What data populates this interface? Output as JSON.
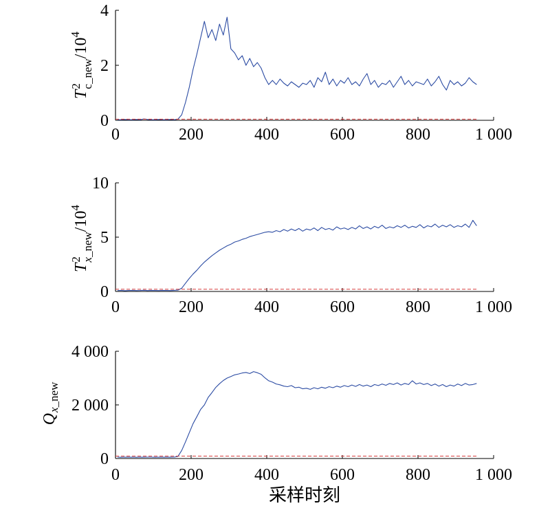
{
  "chart_data": [
    {
      "type": "line",
      "ylabel": {
        "base": "T",
        "sup": "2",
        "sub": "c_new",
        "unit": "/10",
        "unit_sup": "4"
      },
      "xlim": [
        0,
        1000
      ],
      "ylim": [
        0,
        4
      ],
      "x_ticks": [
        0,
        200,
        400,
        600,
        800,
        1000
      ],
      "x_tick_labels": [
        "0",
        "200",
        "400",
        "600",
        "800",
        "1 000"
      ],
      "y_ticks": [
        0,
        2,
        4
      ],
      "y_tick_labels": [
        "0",
        "2",
        "4"
      ],
      "grid": false,
      "x": [
        5,
        15,
        25,
        35,
        45,
        55,
        65,
        75,
        85,
        95,
        105,
        115,
        125,
        135,
        145,
        155,
        165,
        175,
        185,
        195,
        205,
        215,
        225,
        235,
        245,
        255,
        265,
        275,
        285,
        295,
        305,
        315,
        325,
        335,
        345,
        355,
        365,
        375,
        385,
        395,
        405,
        415,
        425,
        435,
        445,
        455,
        465,
        475,
        485,
        495,
        505,
        515,
        525,
        535,
        545,
        555,
        565,
        575,
        585,
        595,
        605,
        615,
        625,
        635,
        645,
        655,
        665,
        675,
        685,
        695,
        705,
        715,
        725,
        735,
        745,
        755,
        765,
        775,
        785,
        795,
        805,
        815,
        825,
        835,
        845,
        855,
        865,
        875,
        885,
        895,
        905,
        915,
        925,
        935,
        945,
        955
      ],
      "series": [
        {
          "color": "#2b4ba3",
          "dashed": false,
          "values": [
            0.02,
            0.02,
            0.03,
            0.02,
            0.02,
            0.03,
            0.02,
            0.05,
            0.03,
            0.02,
            0.02,
            0.03,
            0.02,
            0.02,
            0.03,
            0.02,
            0.04,
            0.2,
            0.65,
            1.2,
            1.85,
            2.4,
            3.0,
            3.6,
            3.0,
            3.3,
            2.9,
            3.5,
            3.1,
            3.75,
            2.6,
            2.45,
            2.2,
            2.35,
            2.0,
            2.25,
            1.95,
            2.1,
            1.9,
            1.55,
            1.3,
            1.45,
            1.3,
            1.5,
            1.35,
            1.25,
            1.4,
            1.3,
            1.2,
            1.35,
            1.3,
            1.45,
            1.2,
            1.55,
            1.4,
            1.75,
            1.3,
            1.5,
            1.25,
            1.45,
            1.35,
            1.55,
            1.3,
            1.4,
            1.25,
            1.5,
            1.7,
            1.3,
            1.45,
            1.2,
            1.35,
            1.3,
            1.45,
            1.2,
            1.4,
            1.6,
            1.3,
            1.45,
            1.25,
            1.4,
            1.35,
            1.3,
            1.5,
            1.25,
            1.4,
            1.6,
            1.3,
            1.1,
            1.45,
            1.3,
            1.4,
            1.25,
            1.35,
            1.55,
            1.4,
            1.3
          ]
        },
        {
          "color": "#d43a3a",
          "dashed": true,
          "x": [
            0,
            955
          ],
          "values": [
            0.04,
            0.04
          ]
        }
      ]
    },
    {
      "type": "line",
      "ylabel": {
        "base": "T",
        "sup": "2",
        "sub_var": "x",
        "sub": "_new",
        "unit": "/10",
        "unit_sup": "4"
      },
      "xlim": [
        0,
        1000
      ],
      "ylim": [
        0,
        10
      ],
      "x_ticks": [
        0,
        200,
        400,
        600,
        800,
        1000
      ],
      "x_tick_labels": [
        "0",
        "200",
        "400",
        "600",
        "800",
        "1 000"
      ],
      "y_ticks": [
        0,
        5,
        10
      ],
      "y_tick_labels": [
        "0",
        "5",
        "10"
      ],
      "grid": false,
      "x": [
        5,
        15,
        25,
        35,
        45,
        55,
        65,
        75,
        85,
        95,
        105,
        115,
        125,
        135,
        145,
        155,
        165,
        175,
        185,
        195,
        205,
        215,
        225,
        235,
        245,
        255,
        265,
        275,
        285,
        295,
        305,
        315,
        325,
        335,
        345,
        355,
        365,
        375,
        385,
        395,
        405,
        415,
        425,
        435,
        445,
        455,
        465,
        475,
        485,
        495,
        505,
        515,
        525,
        535,
        545,
        555,
        565,
        575,
        585,
        595,
        605,
        615,
        625,
        635,
        645,
        655,
        665,
        675,
        685,
        695,
        705,
        715,
        725,
        735,
        745,
        755,
        765,
        775,
        785,
        795,
        805,
        815,
        825,
        835,
        845,
        855,
        865,
        875,
        885,
        895,
        905,
        915,
        925,
        935,
        945,
        955
      ],
      "series": [
        {
          "color": "#2b4ba3",
          "dashed": false,
          "values": [
            0.08,
            0.1,
            0.07,
            0.09,
            0.1,
            0.08,
            0.09,
            0.11,
            0.08,
            0.1,
            0.09,
            0.08,
            0.1,
            0.09,
            0.08,
            0.1,
            0.12,
            0.3,
            0.75,
            1.2,
            1.6,
            1.95,
            2.35,
            2.7,
            3.0,
            3.3,
            3.55,
            3.8,
            4.0,
            4.2,
            4.35,
            4.55,
            4.65,
            4.8,
            4.9,
            5.05,
            5.15,
            5.25,
            5.35,
            5.45,
            5.5,
            5.45,
            5.6,
            5.5,
            5.7,
            5.55,
            5.75,
            5.6,
            5.8,
            5.55,
            5.75,
            5.65,
            5.85,
            5.6,
            5.9,
            5.7,
            5.8,
            5.65,
            5.95,
            5.75,
            5.85,
            5.7,
            5.9,
            5.75,
            6.05,
            5.8,
            5.95,
            5.75,
            6.0,
            5.85,
            6.1,
            5.8,
            5.95,
            5.85,
            6.05,
            5.9,
            6.1,
            5.85,
            6.0,
            5.9,
            6.15,
            5.85,
            6.05,
            5.95,
            6.2,
            5.9,
            6.1,
            5.95,
            6.15,
            5.9,
            6.05,
            5.95,
            6.2,
            5.9,
            6.55,
            6.05
          ]
        },
        {
          "color": "#d43a3a",
          "dashed": true,
          "x": [
            0,
            955
          ],
          "values": [
            0.2,
            0.2
          ]
        }
      ]
    },
    {
      "type": "line",
      "ylabel": {
        "base": "Q",
        "sub_var": "x",
        "sub": "_new"
      },
      "xlabel": "采样时刻",
      "xlim": [
        0,
        1000
      ],
      "ylim": [
        0,
        4000
      ],
      "x_ticks": [
        0,
        200,
        400,
        600,
        800,
        1000
      ],
      "x_tick_labels": [
        "0",
        "200",
        "400",
        "600",
        "800",
        "1 000"
      ],
      "y_ticks": [
        0,
        2000,
        4000
      ],
      "y_tick_labels": [
        "0",
        "2 000",
        "4 000"
      ],
      "grid": false,
      "x": [
        5,
        15,
        25,
        35,
        45,
        55,
        65,
        75,
        85,
        95,
        105,
        115,
        125,
        135,
        145,
        155,
        165,
        175,
        185,
        195,
        205,
        215,
        225,
        235,
        245,
        255,
        265,
        275,
        285,
        295,
        305,
        315,
        325,
        335,
        345,
        355,
        365,
        375,
        385,
        395,
        405,
        415,
        425,
        435,
        445,
        455,
        465,
        475,
        485,
        495,
        505,
        515,
        525,
        535,
        545,
        555,
        565,
        575,
        585,
        595,
        605,
        615,
        625,
        635,
        645,
        655,
        665,
        675,
        685,
        695,
        705,
        715,
        725,
        735,
        745,
        755,
        765,
        775,
        785,
        795,
        805,
        815,
        825,
        835,
        845,
        855,
        865,
        875,
        885,
        895,
        905,
        915,
        925,
        935,
        945,
        955
      ],
      "series": [
        {
          "color": "#2b4ba3",
          "dashed": false,
          "values": [
            50,
            45,
            52,
            48,
            50,
            47,
            51,
            48,
            50,
            52,
            47,
            50,
            48,
            51,
            49,
            50,
            80,
            300,
            620,
            960,
            1300,
            1560,
            1830,
            2000,
            2280,
            2460,
            2650,
            2790,
            2910,
            3000,
            3060,
            3120,
            3150,
            3190,
            3210,
            3170,
            3240,
            3200,
            3140,
            3010,
            2900,
            2850,
            2780,
            2750,
            2700,
            2680,
            2720,
            2640,
            2660,
            2600,
            2620,
            2580,
            2640,
            2600,
            2660,
            2620,
            2680,
            2640,
            2700,
            2660,
            2720,
            2680,
            2740,
            2690,
            2760,
            2700,
            2740,
            2680,
            2760,
            2720,
            2780,
            2730,
            2800,
            2760,
            2820,
            2740,
            2800,
            2760,
            2900,
            2780,
            2820,
            2760,
            2800,
            2720,
            2780,
            2700,
            2760,
            2680,
            2740,
            2700,
            2780,
            2720,
            2800,
            2740,
            2760,
            2800
          ]
        },
        {
          "color": "#d43a3a",
          "dashed": true,
          "x": [
            0,
            955
          ],
          "values": [
            90,
            90
          ]
        }
      ]
    }
  ]
}
